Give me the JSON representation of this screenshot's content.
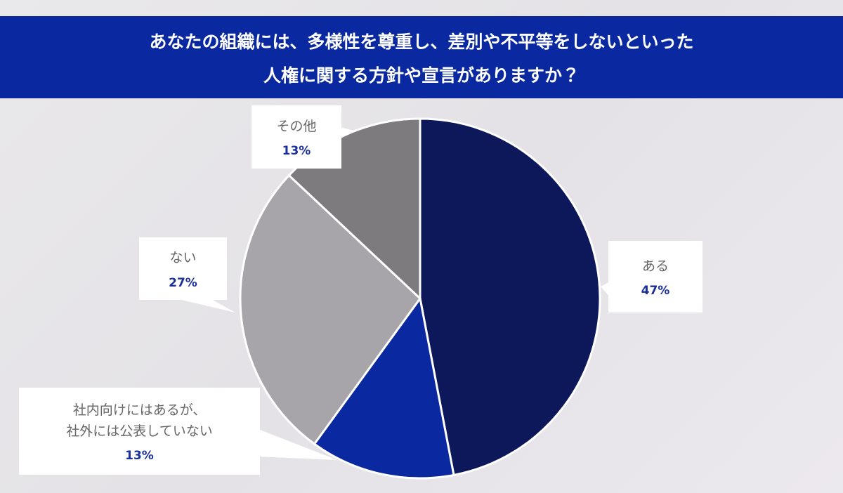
{
  "chart_data": {
    "type": "pie",
    "title": [
      "あなたの組織には、多様性を尊重し、差別や不平等をしないといった",
      "人権に関する方針や宣言がありますか？"
    ],
    "categories": [
      "ある",
      "社内向けにはあるが、\n社外には公表していない",
      "ない",
      "その他"
    ],
    "values": [
      47,
      13,
      27,
      13
    ],
    "value_labels": [
      "47%",
      "13%",
      "27%",
      "13%"
    ],
    "colors": [
      "#0c185a",
      "#0a29a0",
      "#a7a5aa",
      "#7e7b7f"
    ]
  }
}
